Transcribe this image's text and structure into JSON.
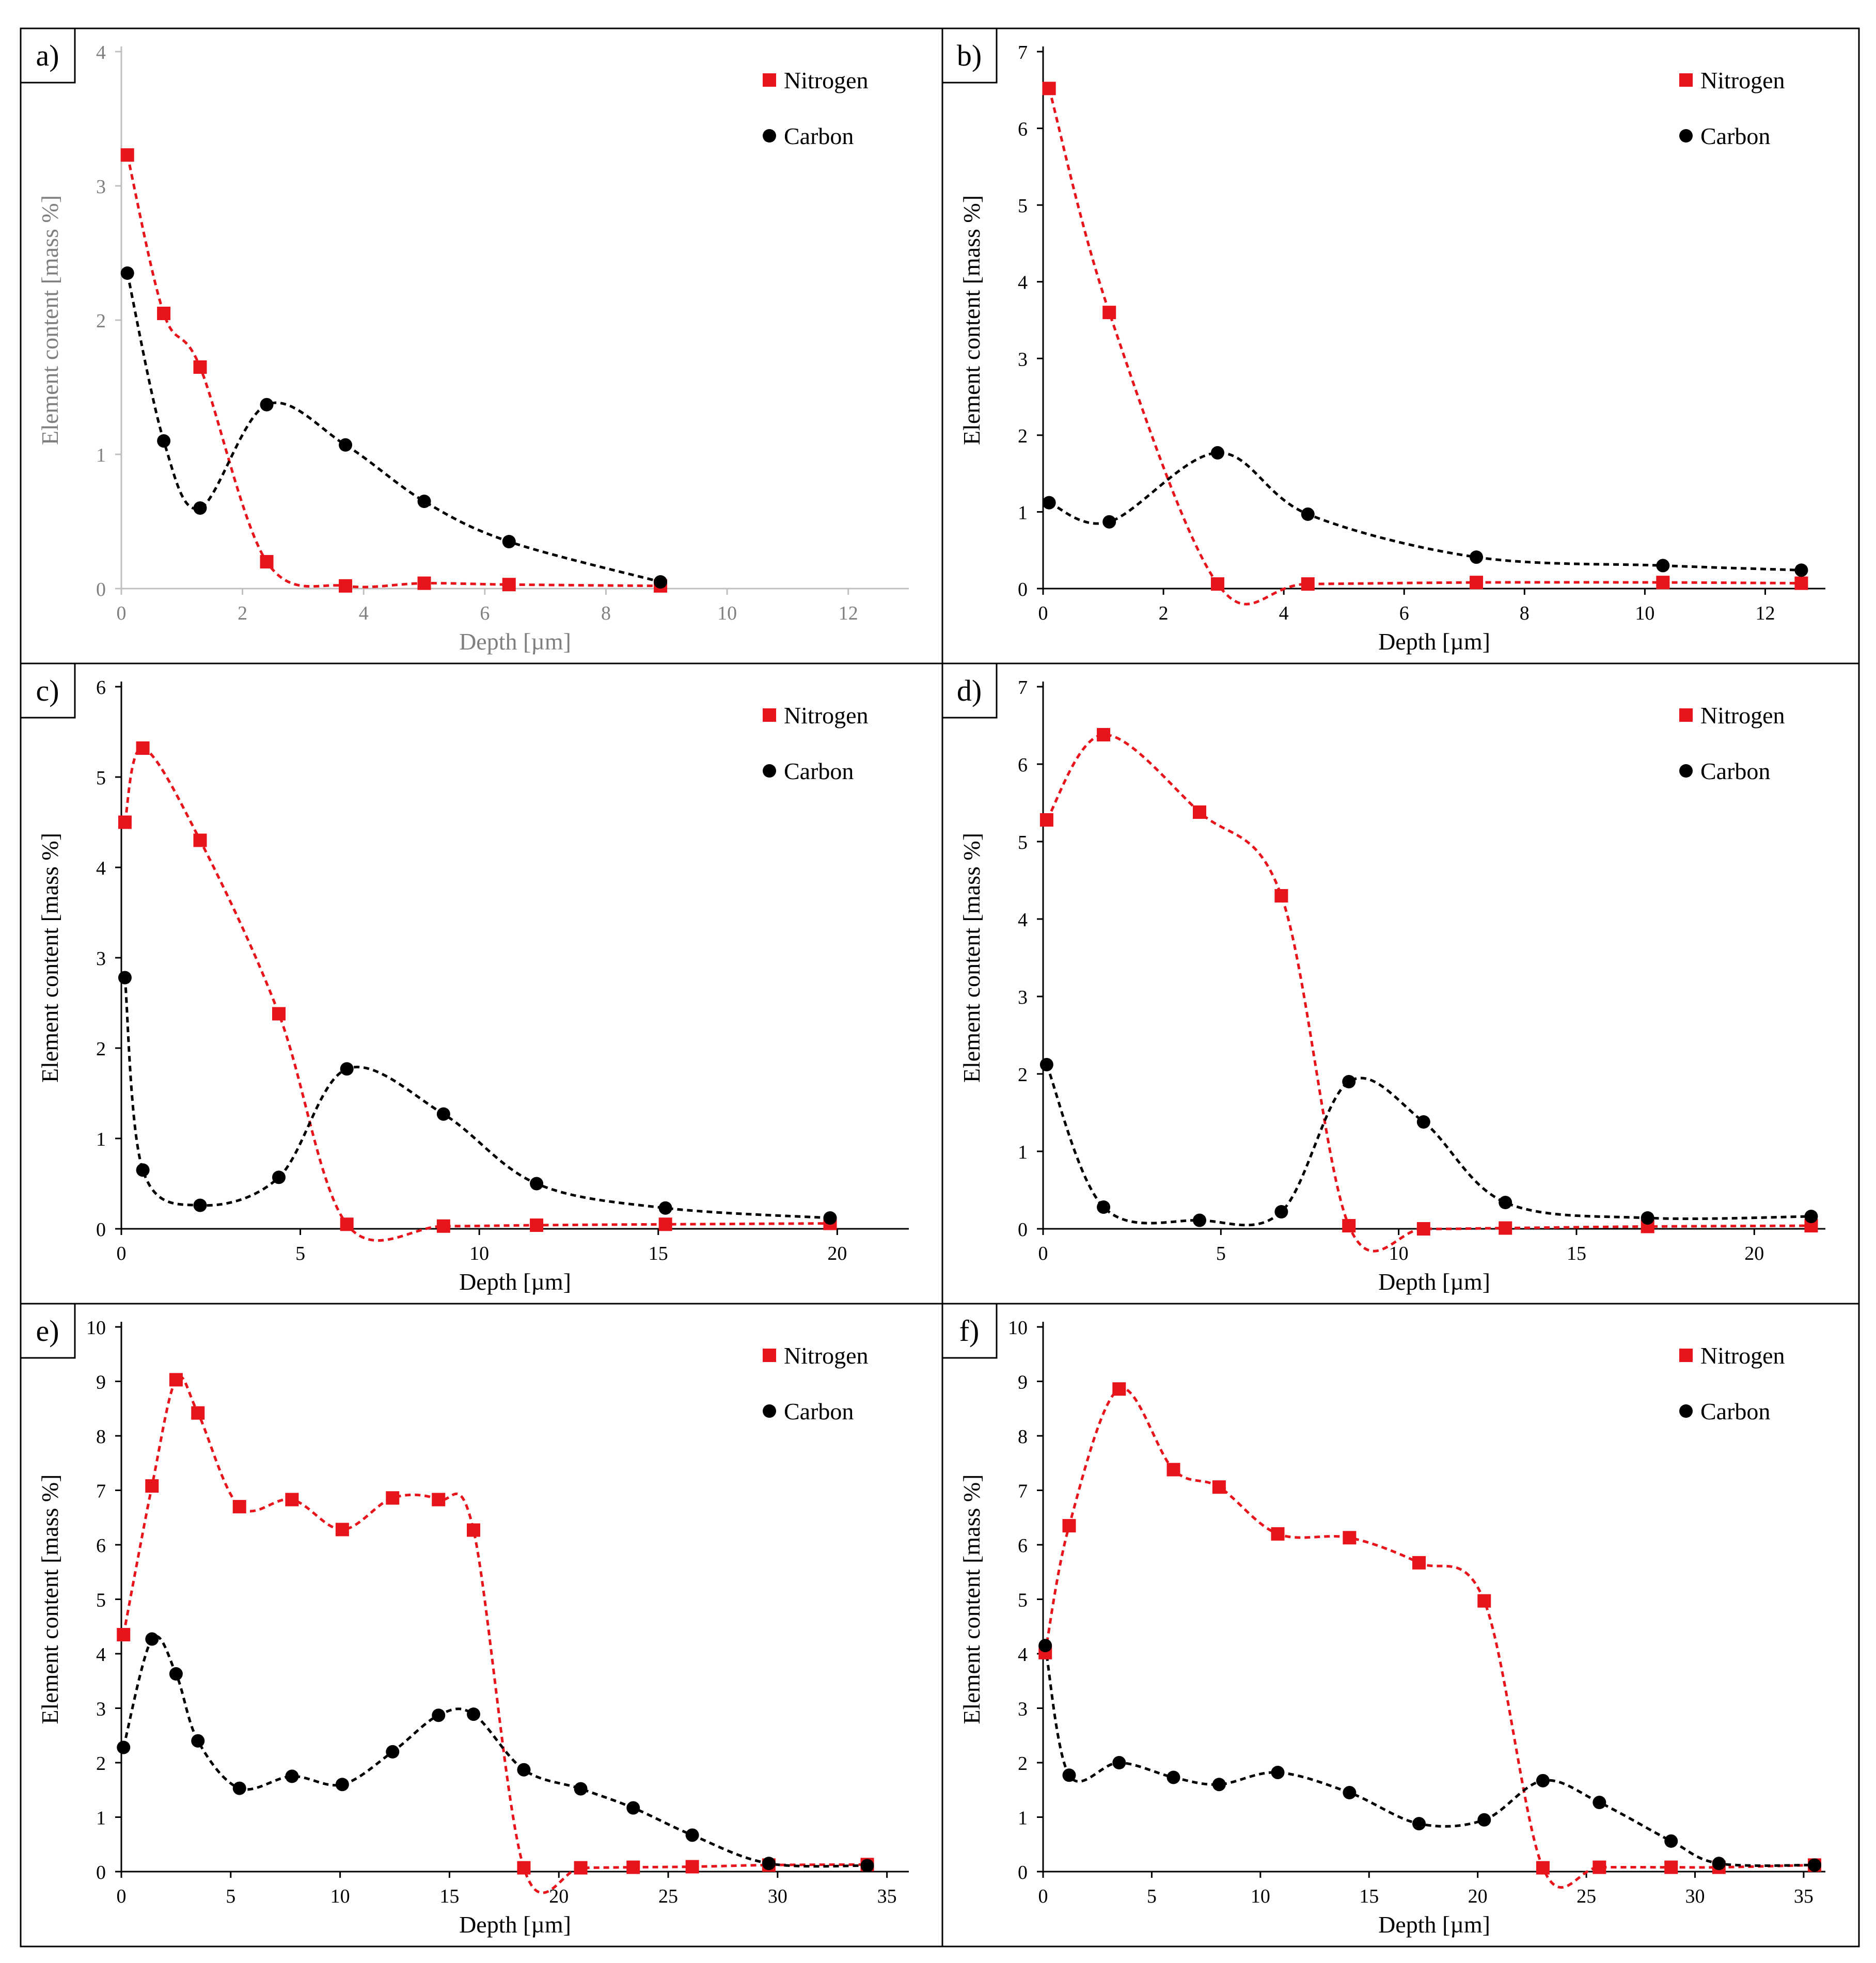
{
  "colors": {
    "nitrogen": "#e8141b",
    "carbon": "#000000",
    "axis": "#bfbfbf",
    "gray_text": "#7f7f7f",
    "frame": "#000000"
  },
  "chart_data": [
    {
      "panel_label": "a)",
      "type": "scatter",
      "xlabel": "Depth [µm]",
      "ylabel": "Element content [mass %]",
      "xlim": [
        0,
        13
      ],
      "ylim": [
        0,
        4
      ],
      "xticks": [
        0,
        2,
        4,
        6,
        8,
        10,
        12
      ],
      "yticks": [
        0,
        1,
        2,
        3,
        4
      ],
      "style": "gray",
      "legend_position": "top-right",
      "series": [
        {
          "name": "Nitrogen",
          "color": "#e8141b",
          "marker": "square",
          "x": [
            0.1,
            0.7,
            1.3,
            2.4,
            3.7,
            5.0,
            6.4,
            8.9
          ],
          "y": [
            3.23,
            2.05,
            1.65,
            0.2,
            0.02,
            0.04,
            0.03,
            0.02
          ]
        },
        {
          "name": "Carbon",
          "color": "#000000",
          "marker": "circle",
          "x": [
            0.1,
            0.7,
            1.3,
            2.4,
            3.7,
            5.0,
            6.4,
            8.9
          ],
          "y": [
            2.35,
            1.1,
            0.6,
            1.37,
            1.07,
            0.65,
            0.35,
            0.05
          ]
        }
      ]
    },
    {
      "panel_label": "b)",
      "type": "scatter",
      "xlabel": "Depth [µm]",
      "ylabel": "Element content [mass %]",
      "xlim": [
        0,
        13
      ],
      "ylim": [
        0,
        7
      ],
      "xticks": [
        0,
        2,
        4,
        6,
        8,
        10,
        12
      ],
      "yticks": [
        0,
        1,
        2,
        3,
        4,
        5,
        6,
        7
      ],
      "style": "black",
      "legend_position": "top-right",
      "series": [
        {
          "name": "Nitrogen",
          "color": "#e8141b",
          "marker": "square",
          "x": [
            0.1,
            1.1,
            2.9,
            4.4,
            7.2,
            10.3,
            12.6
          ],
          "y": [
            6.52,
            3.6,
            0.06,
            0.06,
            0.08,
            0.08,
            0.07
          ]
        },
        {
          "name": "Carbon",
          "color": "#000000",
          "marker": "circle",
          "x": [
            0.1,
            1.1,
            2.9,
            4.4,
            7.2,
            10.3,
            12.6
          ],
          "y": [
            1.12,
            0.87,
            1.77,
            0.97,
            0.41,
            0.3,
            0.24
          ]
        }
      ]
    },
    {
      "panel_label": "c)",
      "type": "scatter",
      "xlabel": "Depth [µm]",
      "ylabel": "Element content [mass %]",
      "xlim": [
        0,
        22
      ],
      "ylim": [
        0,
        6
      ],
      "xticks": [
        0,
        5,
        10,
        15,
        20
      ],
      "yticks": [
        0,
        1,
        2,
        3,
        4,
        5,
        6
      ],
      "style": "black",
      "legend_position": "top-right",
      "series": [
        {
          "name": "Nitrogen",
          "color": "#e8141b",
          "marker": "square",
          "x": [
            0.1,
            0.6,
            2.2,
            4.4,
            6.3,
            9.0,
            11.6,
            15.2,
            19.8
          ],
          "y": [
            4.5,
            5.32,
            4.3,
            2.38,
            0.05,
            0.03,
            0.04,
            0.05,
            0.06
          ]
        },
        {
          "name": "Carbon",
          "color": "#000000",
          "marker": "circle",
          "x": [
            0.1,
            0.6,
            2.2,
            4.4,
            6.3,
            9.0,
            11.6,
            15.2,
            19.8
          ],
          "y": [
            2.78,
            0.65,
            0.26,
            0.57,
            1.77,
            1.27,
            0.5,
            0.23,
            0.12
          ]
        }
      ]
    },
    {
      "panel_label": "d)",
      "type": "scatter",
      "xlabel": "Depth [µm]",
      "ylabel": "Element content [mass %]",
      "xlim": [
        0,
        22
      ],
      "ylim": [
        0,
        7
      ],
      "xticks": [
        0,
        5,
        10,
        15,
        20
      ],
      "yticks": [
        0,
        1,
        2,
        3,
        4,
        5,
        6,
        7
      ],
      "style": "black",
      "legend_position": "top-right",
      "series": [
        {
          "name": "Nitrogen",
          "color": "#e8141b",
          "marker": "square",
          "x": [
            0.1,
            1.7,
            4.4,
            6.7,
            8.6,
            10.7,
            13.0,
            17.0,
            21.6
          ],
          "y": [
            5.28,
            6.38,
            5.38,
            4.3,
            0.04,
            0.0,
            0.01,
            0.03,
            0.04
          ]
        },
        {
          "name": "Carbon",
          "color": "#000000",
          "marker": "circle",
          "x": [
            0.1,
            1.7,
            4.4,
            6.7,
            8.6,
            10.7,
            13.0,
            17.0,
            21.6
          ],
          "y": [
            2.12,
            0.28,
            0.11,
            0.22,
            1.9,
            1.38,
            0.34,
            0.14,
            0.16
          ]
        }
      ]
    },
    {
      "panel_label": "e)",
      "type": "scatter",
      "xlabel": "Depth [µm]",
      "ylabel": "Element content [mass %]",
      "xlim": [
        0,
        36
      ],
      "ylim": [
        0,
        10
      ],
      "xticks": [
        0,
        5,
        10,
        15,
        20,
        25,
        30,
        35
      ],
      "yticks": [
        0,
        1,
        2,
        3,
        4,
        5,
        6,
        7,
        8,
        9,
        10
      ],
      "style": "black",
      "legend_position": "top-right",
      "series": [
        {
          "name": "Nitrogen",
          "color": "#e8141b",
          "marker": "square",
          "x": [
            0.1,
            1.4,
            2.5,
            3.5,
            5.4,
            7.8,
            10.1,
            12.4,
            14.5,
            16.1,
            18.4,
            21.0,
            23.4,
            26.1,
            29.6,
            34.1
          ],
          "y": [
            4.35,
            7.08,
            9.03,
            8.42,
            6.7,
            6.83,
            6.28,
            6.86,
            6.83,
            6.27,
            0.07,
            0.07,
            0.08,
            0.09,
            0.12,
            0.13
          ]
        },
        {
          "name": "Carbon",
          "color": "#000000",
          "marker": "circle",
          "x": [
            0.1,
            1.4,
            2.5,
            3.5,
            5.4,
            7.8,
            10.1,
            12.4,
            14.5,
            16.1,
            18.4,
            21.0,
            23.4,
            26.1,
            29.6,
            34.1
          ],
          "y": [
            2.28,
            4.27,
            3.63,
            2.4,
            1.53,
            1.75,
            1.6,
            2.2,
            2.87,
            2.89,
            1.87,
            1.52,
            1.17,
            0.67,
            0.15,
            0.11
          ]
        }
      ]
    },
    {
      "panel_label": "f)",
      "type": "scatter",
      "xlabel": "Depth [µm]",
      "ylabel": "Element content [mass %]",
      "xlim": [
        0,
        36
      ],
      "ylim": [
        0,
        10
      ],
      "xticks": [
        0,
        5,
        10,
        15,
        20,
        25,
        30,
        35
      ],
      "yticks": [
        0,
        1,
        2,
        3,
        4,
        5,
        6,
        7,
        8,
        9,
        10
      ],
      "style": "black",
      "legend_position": "top-right",
      "series": [
        {
          "name": "Nitrogen",
          "color": "#e8141b",
          "marker": "square",
          "x": [
            0.1,
            1.2,
            3.5,
            6.0,
            8.1,
            10.8,
            14.1,
            17.3,
            20.3,
            23.0,
            25.6,
            28.9,
            31.1,
            35.5
          ],
          "y": [
            4.02,
            6.35,
            8.86,
            7.38,
            7.06,
            6.2,
            6.13,
            5.67,
            4.97,
            0.07,
            0.08,
            0.08,
            0.08,
            0.12
          ]
        },
        {
          "name": "Carbon",
          "color": "#000000",
          "marker": "circle",
          "x": [
            0.1,
            1.2,
            3.5,
            6.0,
            8.1,
            10.8,
            14.1,
            17.3,
            20.3,
            23.0,
            25.6,
            28.9,
            31.1,
            35.5
          ],
          "y": [
            4.15,
            1.77,
            2.0,
            1.73,
            1.6,
            1.82,
            1.45,
            0.88,
            0.95,
            1.67,
            1.27,
            0.56,
            0.15,
            0.12
          ]
        }
      ]
    }
  ]
}
